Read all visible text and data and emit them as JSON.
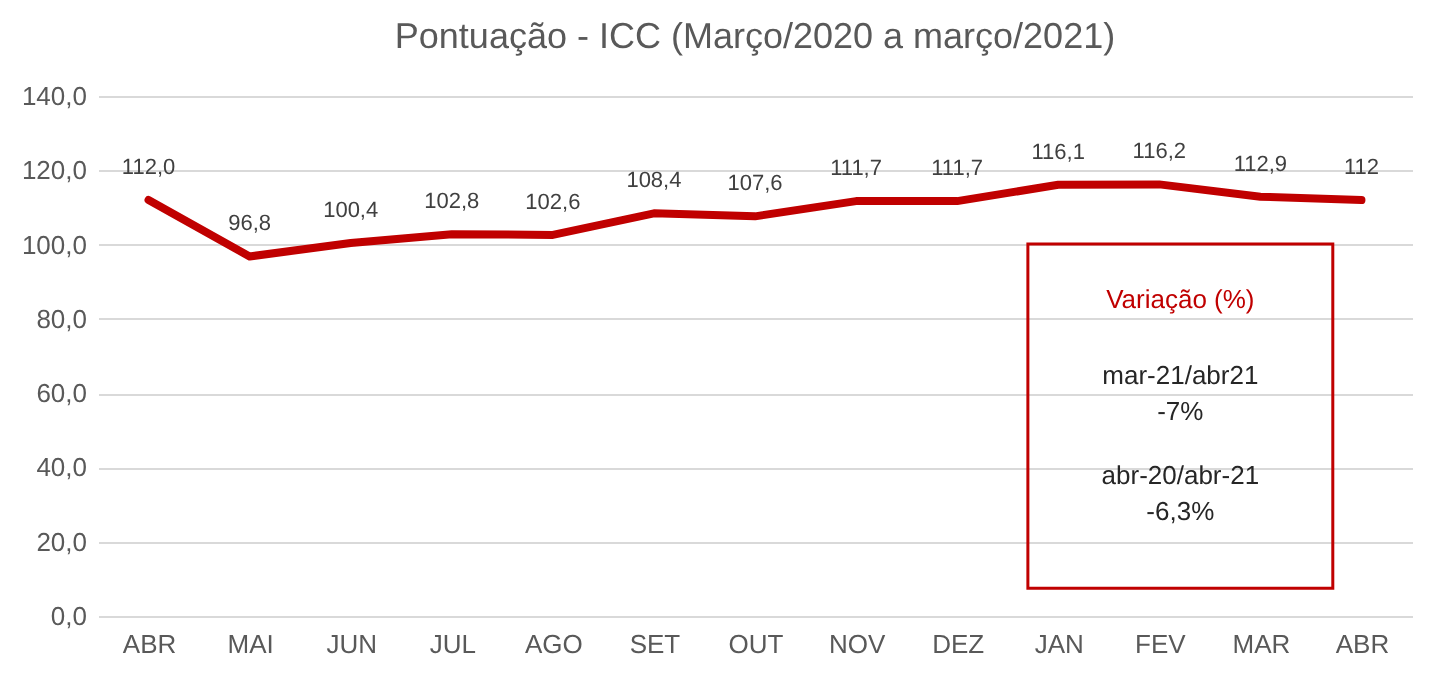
{
  "chart_data": {
    "type": "line",
    "title": "Pontuação - ICC (Março/2020 a março/2021)",
    "categories": [
      "ABR",
      "MAI",
      "JUN",
      "JUL",
      "AGO",
      "SET",
      "OUT",
      "NOV",
      "DEZ",
      "JAN",
      "FEV",
      "MAR",
      "ABR"
    ],
    "series": [
      {
        "color": "#c00000",
        "values": [
          112.0,
          96.8,
          100.4,
          102.8,
          102.6,
          108.4,
          107.6,
          111.7,
          111.7,
          116.1,
          116.2,
          112.9,
          112
        ],
        "value_labels": [
          "112,0",
          "96,8",
          "100,4",
          "102,8",
          "102,6",
          "108,4",
          "107,6",
          "111,7",
          "111,7",
          "116,1",
          "116,2",
          "112,9",
          "112"
        ]
      }
    ],
    "ylim": [
      0,
      140
    ],
    "yticks": [
      {
        "value": 0,
        "label": "0,0"
      },
      {
        "value": 20,
        "label": "20,0"
      },
      {
        "value": 40,
        "label": "40,0"
      },
      {
        "value": 60,
        "label": "60,0"
      },
      {
        "value": 80,
        "label": "80,0"
      },
      {
        "value": 100,
        "label": "100,0"
      },
      {
        "value": 120,
        "label": "120,0"
      },
      {
        "value": 140,
        "label": "140,0"
      }
    ],
    "grid": "y",
    "marker": "none",
    "line_style": "solid",
    "annotations": [
      "Variação (%)",
      "mar-21/abr21",
      "-7%",
      "abr-20/abr-21",
      "-6,3%"
    ]
  }
}
